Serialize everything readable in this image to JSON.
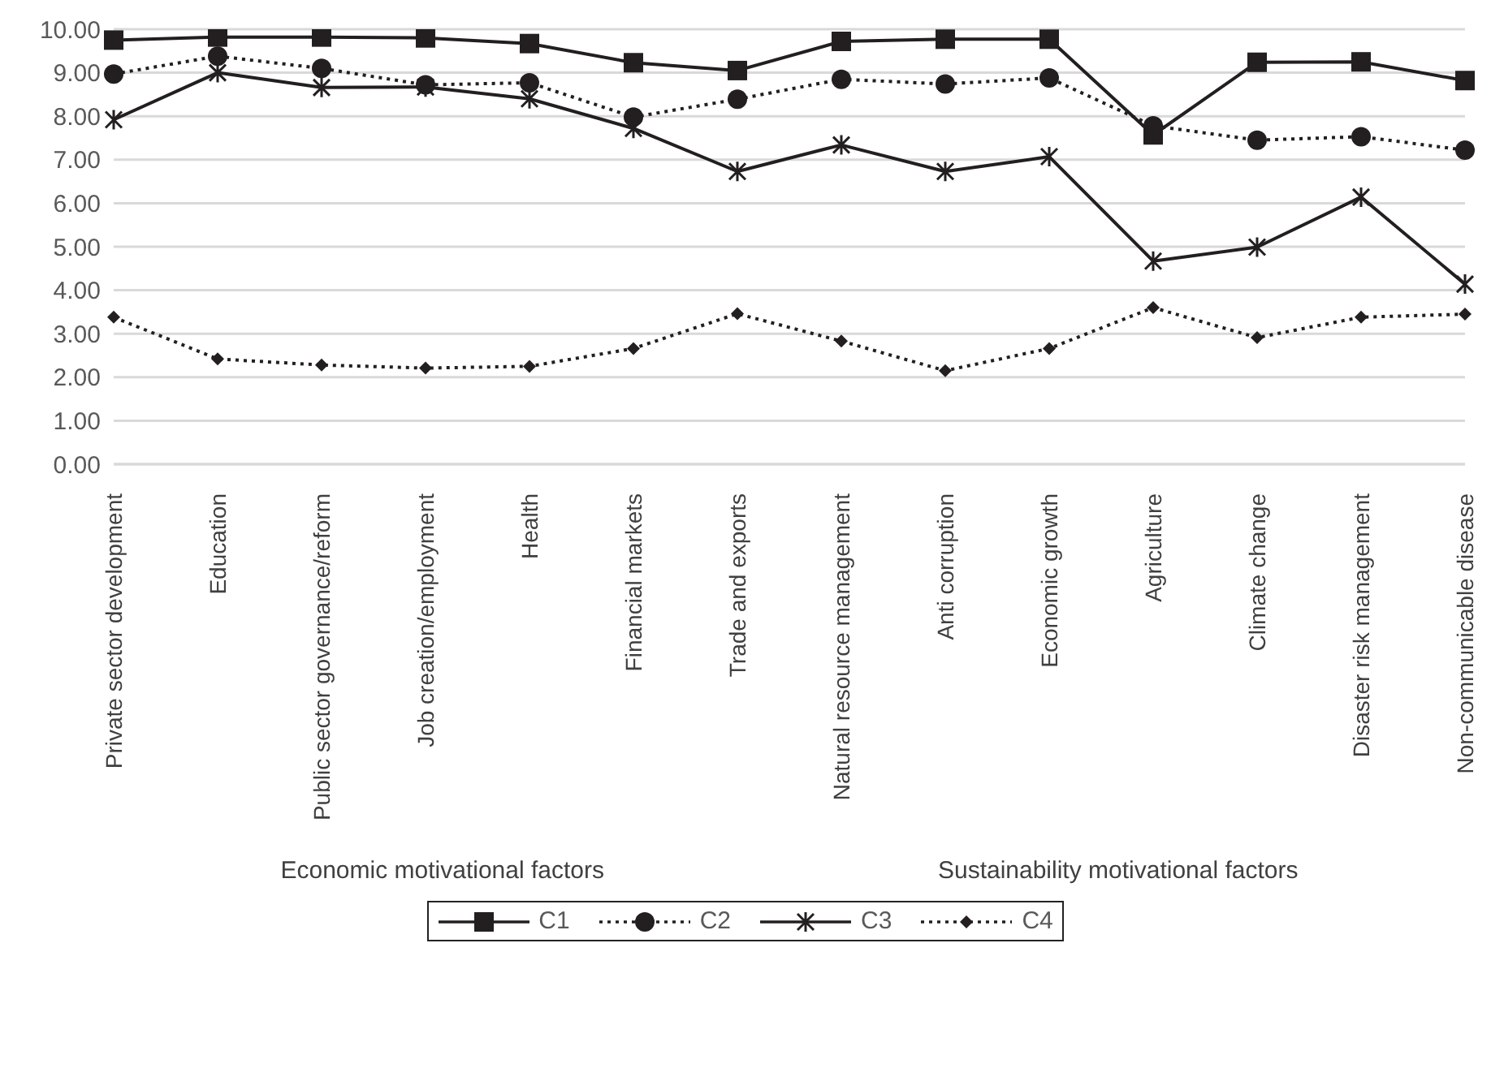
{
  "chart_data": {
    "type": "line",
    "categories": [
      "Private sector development",
      "Education",
      "Public sector governance/reform",
      "Job creation/employment",
      "Health",
      "Financial markets",
      "Trade and exports",
      "Natural resource management",
      "Anti corruption",
      "Economic growth",
      "Agriculture",
      "Climate change",
      "Disaster risk management",
      "Non-communicable disease"
    ],
    "series": [
      {
        "name": "C1",
        "color": "#231f20",
        "marker": "square",
        "line_style": "solid",
        "values": [
          9.75,
          9.82,
          9.82,
          9.8,
          9.67,
          9.23,
          9.05,
          9.72,
          9.77,
          9.77,
          7.57,
          9.24,
          9.25,
          8.82
        ]
      },
      {
        "name": "C2",
        "color": "#231f20",
        "marker": "circle",
        "line_style": "dotted",
        "values": [
          8.97,
          9.38,
          9.1,
          8.72,
          8.77,
          7.98,
          8.39,
          8.85,
          8.74,
          8.88,
          7.78,
          7.45,
          7.53,
          7.22
        ]
      },
      {
        "name": "C3",
        "color": "#231f20",
        "marker": "cross",
        "line_style": "solid",
        "values": [
          7.92,
          9.0,
          8.66,
          8.67,
          8.4,
          7.72,
          6.73,
          7.34,
          6.73,
          7.07,
          4.67,
          4.99,
          6.14,
          4.14
        ]
      },
      {
        "name": "C4",
        "color": "#231f20",
        "marker": "diamond",
        "line_style": "dotted",
        "values": [
          3.38,
          2.42,
          2.28,
          2.21,
          2.25,
          2.66,
          3.46,
          2.83,
          2.15,
          2.66,
          3.6,
          2.91,
          3.38,
          3.45
        ]
      }
    ],
    "ylim": [
      0,
      10
    ],
    "yticks": [
      {
        "value": 0,
        "label": "0.00"
      },
      {
        "value": 1,
        "label": "1.00"
      },
      {
        "value": 2,
        "label": "2.00"
      },
      {
        "value": 3,
        "label": "3.00"
      },
      {
        "value": 4,
        "label": "4.00"
      },
      {
        "value": 5,
        "label": "5.00"
      },
      {
        "value": 6,
        "label": "6.00"
      },
      {
        "value": 7,
        "label": "7.00"
      },
      {
        "value": 8,
        "label": "8.00"
      },
      {
        "value": 9,
        "label": "9.00"
      },
      {
        "value": 10,
        "label": "10.00"
      }
    ],
    "grid": "y",
    "legend": "bottom",
    "annotations": [
      "Economic motivational factors",
      "Sustainability motivational factors"
    ]
  }
}
